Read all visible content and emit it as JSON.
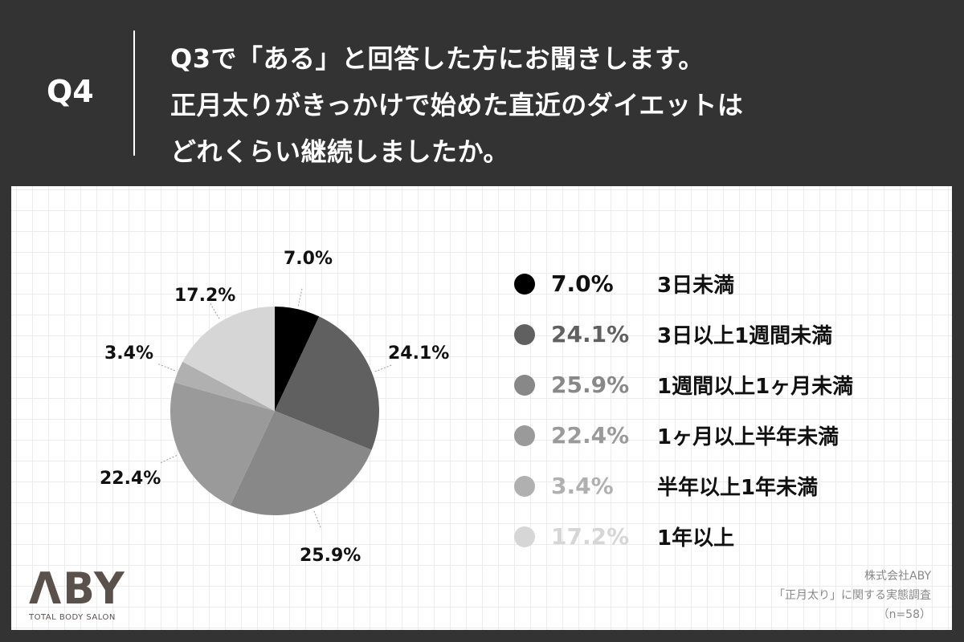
{
  "header": {
    "question_number": "Q4",
    "question_lines": [
      "Q3で「ある」と回答した方にお聞きします。",
      "正月太りがきっかけで始めた直近のダイエットは",
      "どれくらい継続しましたか。"
    ]
  },
  "legend": [
    {
      "pct": "7.0%",
      "label": "3日未満",
      "color": "#000000",
      "text_color": "#111111"
    },
    {
      "pct": "24.1%",
      "label": "3日以上1週間未満",
      "color": "#606060",
      "text_color": "#606060"
    },
    {
      "pct": "25.9%",
      "label": "1週間以上1ヶ月未満",
      "color": "#888888",
      "text_color": "#888888"
    },
    {
      "pct": "22.4%",
      "label": "1ヶ月以上半年未満",
      "color": "#9a9a9a",
      "text_color": "#9a9a9a"
    },
    {
      "pct": "3.4%",
      "label": "半年以上1年未満",
      "color": "#b0b0b0",
      "text_color": "#b0b0b0"
    },
    {
      "pct": "17.2%",
      "label": "1年以上",
      "color": "#d6d6d6",
      "text_color": "#d6d6d6"
    }
  ],
  "pie_labels": [
    "7.0%",
    "24.1%",
    "25.9%",
    "22.4%",
    "3.4%",
    "17.2%"
  ],
  "logo": {
    "mark": "ΛBY",
    "subtitle": "TOTAL BODY SALON"
  },
  "source": {
    "company": "株式会社ABY",
    "survey": "「正月太り」に関する実態調査",
    "sample": "（n=58）"
  },
  "chart_data": {
    "type": "pie",
    "title": "正月太りがきっかけで始めた直近のダイエットはどれくらい継続しましたか。",
    "categories": [
      "3日未満",
      "3日以上1週間未満",
      "1週間以上1ヶ月未満",
      "1ヶ月以上半年未満",
      "半年以上1年未満",
      "1年以上"
    ],
    "values": [
      7.0,
      24.1,
      25.9,
      22.4,
      3.4,
      17.2
    ],
    "unit": "%",
    "colors": [
      "#000000",
      "#606060",
      "#888888",
      "#9a9a9a",
      "#b0b0b0",
      "#d6d6d6"
    ],
    "start_angle": "12 o'clock, clockwise",
    "legend_position": "right",
    "n": 58
  }
}
